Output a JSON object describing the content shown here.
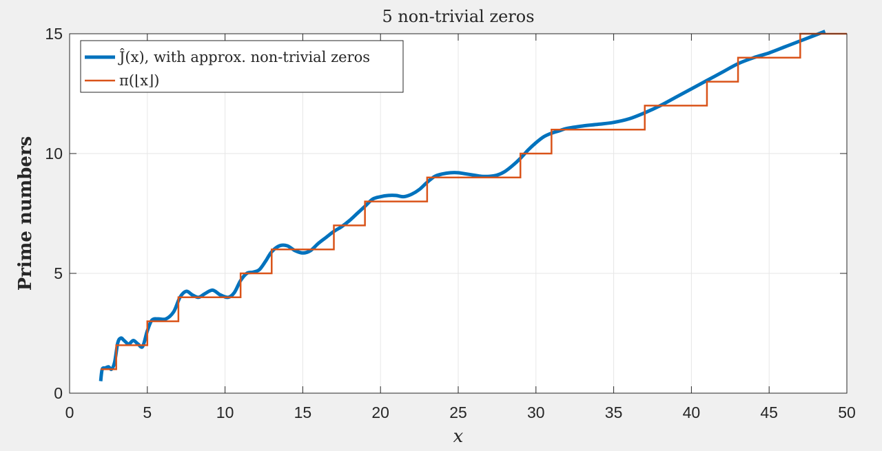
{
  "chart_data": {
    "type": "line",
    "title": "5 non-trivial zeros",
    "xlabel": "x",
    "ylabel": "Prime numbers",
    "xlim": [
      0,
      50
    ],
    "ylim": [
      0,
      15
    ],
    "xticks": [
      0,
      5,
      10,
      15,
      20,
      25,
      30,
      35,
      40,
      45,
      50
    ],
    "yticks": [
      0,
      5,
      10,
      15
    ],
    "grid": true,
    "legend_position": "top-left",
    "series": [
      {
        "name": "Ĵ(x), with approx. non-trivial zeros",
        "color": "#0072bd",
        "x": [
          2.0,
          2.1,
          2.3,
          2.5,
          2.7,
          2.9,
          3.1,
          3.3,
          3.5,
          3.8,
          4.1,
          4.4,
          4.7,
          5.0,
          5.3,
          5.7,
          6.2,
          6.7,
          7.1,
          7.5,
          7.9,
          8.3,
          8.7,
          9.2,
          9.7,
          10.2,
          10.6,
          11.0,
          11.4,
          11.8,
          12.2,
          12.6,
          13.0,
          13.5,
          14.0,
          14.5,
          15.0,
          15.5,
          16.0,
          16.5,
          17.0,
          17.5,
          18.0,
          18.5,
          19.0,
          19.5,
          20.0,
          20.5,
          21.0,
          21.5,
          22.0,
          22.5,
          23.0,
          23.5,
          24.0,
          24.5,
          25.0,
          25.5,
          26.0,
          26.5,
          27.0,
          27.5,
          28.0,
          28.5,
          29.0,
          29.5,
          30.0,
          30.5,
          31.0,
          31.5,
          32.0,
          33.0,
          34.0,
          35.0,
          36.0,
          37.0,
          38.0,
          39.0,
          40.0,
          41.0,
          42.0,
          43.0,
          44.0,
          45.0,
          46.0,
          47.0,
          48.0,
          48.6
        ],
        "values": [
          0.5,
          1.0,
          1.05,
          1.1,
          1.0,
          1.3,
          2.1,
          2.3,
          2.2,
          2.05,
          2.2,
          2.05,
          1.95,
          2.6,
          3.05,
          3.1,
          3.1,
          3.4,
          4.0,
          4.25,
          4.1,
          4.0,
          4.15,
          4.3,
          4.1,
          4.0,
          4.2,
          4.7,
          5.0,
          5.05,
          5.15,
          5.5,
          5.9,
          6.15,
          6.15,
          5.95,
          5.85,
          5.95,
          6.25,
          6.5,
          6.75,
          6.95,
          7.2,
          7.5,
          7.8,
          8.1,
          8.2,
          8.25,
          8.25,
          8.2,
          8.3,
          8.5,
          8.8,
          9.05,
          9.15,
          9.2,
          9.2,
          9.15,
          9.1,
          9.05,
          9.05,
          9.1,
          9.25,
          9.5,
          9.8,
          10.15,
          10.45,
          10.7,
          10.85,
          10.95,
          11.05,
          11.15,
          11.22,
          11.3,
          11.45,
          11.7,
          12.0,
          12.35,
          12.7,
          13.05,
          13.4,
          13.75,
          14.0,
          14.2,
          14.45,
          14.7,
          14.95,
          15.1
        ]
      },
      {
        "name": "π(⌊x⌋)",
        "color": "#d95319",
        "step": true,
        "x": [
          2,
          3,
          5,
          7,
          11,
          13,
          17,
          19,
          23,
          29,
          31,
          37,
          41,
          43,
          47,
          50
        ],
        "values": [
          1,
          2,
          3,
          4,
          5,
          6,
          7,
          8,
          9,
          10,
          11,
          12,
          13,
          14,
          15,
          15
        ]
      }
    ]
  }
}
